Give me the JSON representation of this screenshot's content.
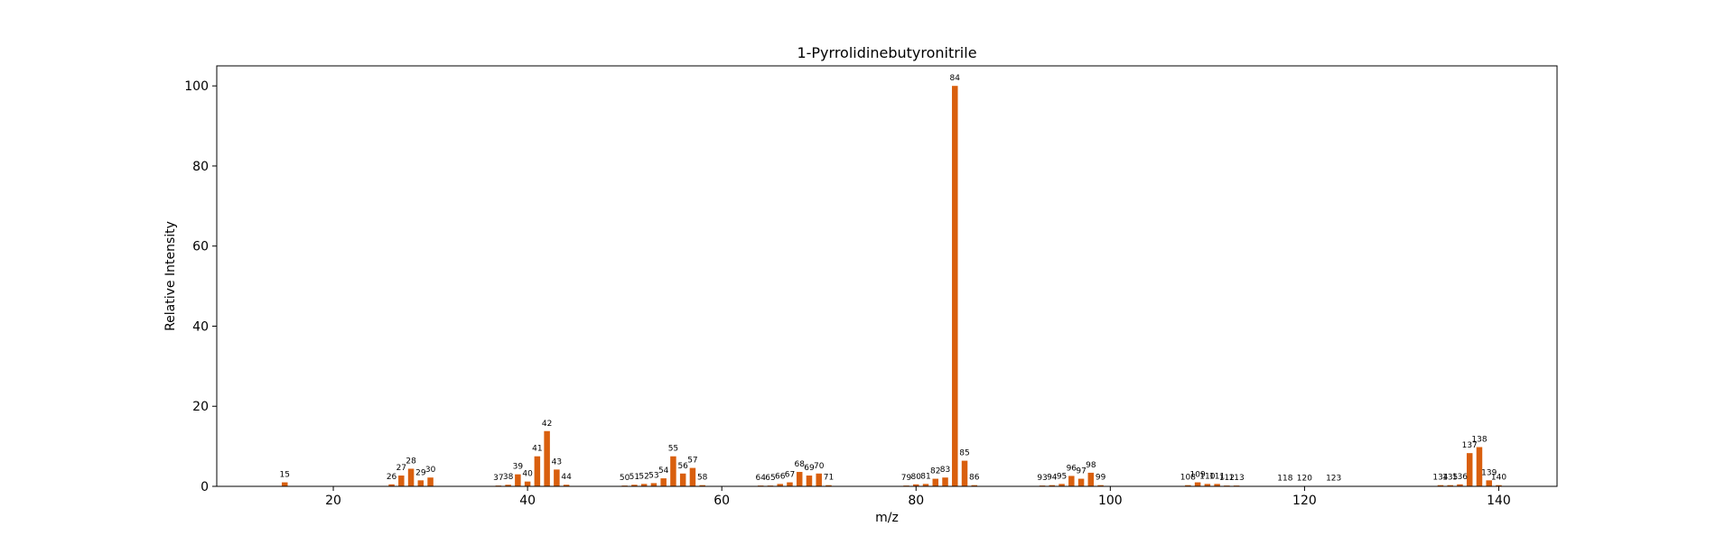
{
  "chart_data": {
    "type": "bar",
    "title": "1-Pyrrolidinebutyronitrile",
    "xlabel": "m/z",
    "ylabel": "Relative Intensity",
    "xlim": [
      8,
      146
    ],
    "ylim": [
      0,
      105
    ],
    "xticks": [
      20,
      40,
      60,
      80,
      100,
      120,
      140
    ],
    "yticks": [
      0,
      20,
      40,
      60,
      80,
      100
    ],
    "grid": false,
    "bar_color": "#d95f0e",
    "x": [
      15,
      26,
      27,
      28,
      29,
      30,
      37,
      38,
      39,
      40,
      41,
      42,
      43,
      44,
      50,
      51,
      52,
      53,
      54,
      55,
      56,
      57,
      58,
      64,
      65,
      66,
      67,
      68,
      69,
      70,
      71,
      79,
      80,
      81,
      82,
      83,
      84,
      85,
      86,
      93,
      94,
      95,
      96,
      97,
      98,
      99,
      108,
      109,
      110,
      111,
      112,
      113,
      118,
      120,
      123,
      134,
      135,
      136,
      137,
      138,
      139,
      140
    ],
    "values": [
      1.0,
      0.5,
      2.7,
      4.4,
      1.5,
      2.2,
      0.2,
      0.4,
      3.0,
      1.2,
      7.5,
      13.8,
      4.2,
      0.4,
      0.2,
      0.4,
      0.6,
      0.8,
      2.0,
      7.5,
      3.2,
      4.6,
      0.3,
      0.2,
      0.2,
      0.6,
      1.0,
      3.6,
      2.7,
      3.2,
      0.3,
      0.2,
      0.5,
      0.6,
      1.9,
      2.2,
      100,
      6.4,
      0.3,
      0.2,
      0.3,
      0.6,
      2.6,
      1.9,
      3.4,
      0.3,
      0.3,
      1.0,
      0.6,
      0.6,
      0.2,
      0.2,
      0.1,
      0.1,
      0.1,
      0.3,
      0.3,
      0.5,
      8.3,
      9.8,
      1.5,
      0.3
    ]
  }
}
